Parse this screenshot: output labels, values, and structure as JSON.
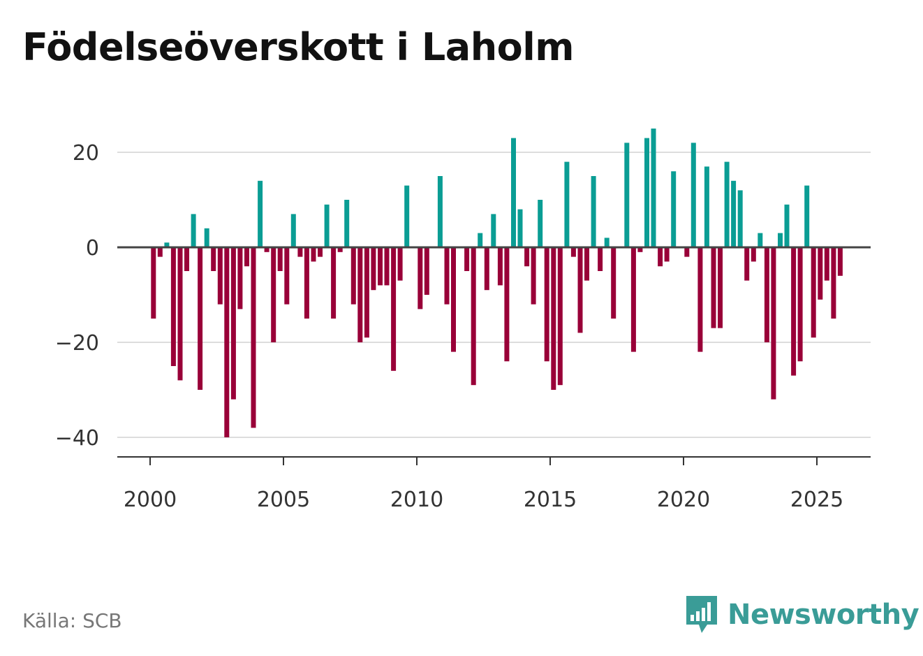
{
  "title": "Födelseöverskott i Laholm",
  "source": "Källa: SCB",
  "brand": {
    "name": "Newsworthy",
    "icon": "newsworthy-logo-icon",
    "color": "#3a9c97"
  },
  "colors": {
    "positive": "#0a9d94",
    "negative": "#990038",
    "zero_line": "#444444",
    "grid": "#dddddd"
  },
  "chart_data": {
    "type": "bar",
    "title": "Födelseöverskott i Laholm",
    "xlabel": "",
    "ylabel": "",
    "ylim": [
      -42,
      29
    ],
    "xlim": [
      1999.3,
      2027.1
    ],
    "yticks": [
      20,
      0,
      -20,
      -40
    ],
    "ytick_labels": [
      "20",
      "0",
      "−20",
      "−40"
    ],
    "xticks": [
      2000,
      2005,
      2010,
      2015,
      2020,
      2025
    ],
    "xtick_labels": [
      "2000",
      "2005",
      "2010",
      "2015",
      "2020",
      "2025"
    ],
    "grid": true,
    "frequency": "quarterly",
    "series": [
      {
        "name": "Födelseöverskott",
        "start": 2000.125,
        "step": 0.25,
        "values": [
          -15,
          -2,
          1,
          -25,
          -28,
          -5,
          7,
          -30,
          4,
          -5,
          -12,
          -40,
          -32,
          -13,
          -4,
          -38,
          14,
          -1,
          -20,
          -5,
          -12,
          7,
          -2,
          -15,
          -3,
          -2,
          9,
          -15,
          -1,
          10,
          -12,
          -20,
          -19,
          -9,
          -8,
          -8,
          -26,
          -7,
          13,
          0,
          -13,
          -10,
          0,
          15,
          -12,
          -22,
          0,
          -5,
          -29,
          3,
          -9,
          7,
          -8,
          -24,
          23,
          8,
          -4,
          -12,
          10,
          -24,
          -30,
          -29,
          18,
          -2,
          -18,
          -7,
          15,
          -5,
          2,
          -15,
          0,
          22,
          -22,
          -1,
          23,
          25,
          -4,
          -3,
          16,
          0,
          -2,
          22,
          -22,
          17,
          -17,
          -17,
          18,
          14,
          12,
          -7,
          -3,
          3,
          -20,
          -32,
          3,
          9,
          -27,
          -24,
          13,
          -19,
          -11,
          -7,
          -15,
          -6
        ]
      }
    ]
  }
}
